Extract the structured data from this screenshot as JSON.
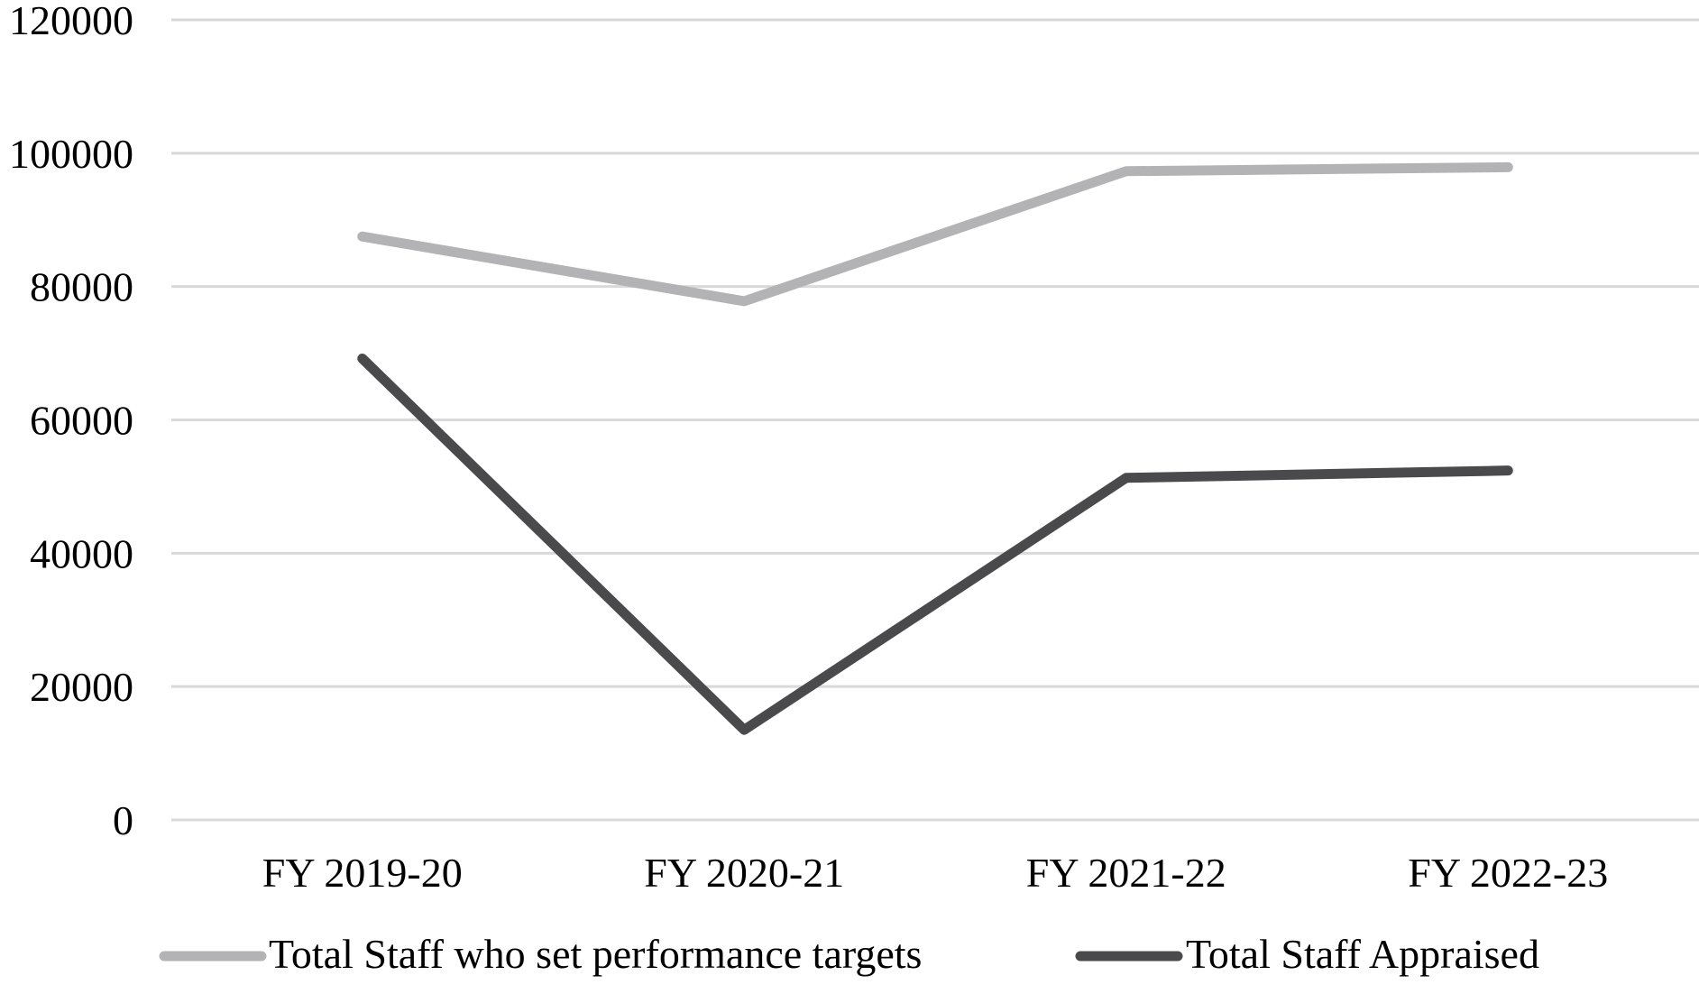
{
  "chart_data": {
    "type": "line",
    "categories": [
      "FY 2019-20",
      "FY 2020-21",
      "FY 2021-22",
      "FY 2022-23"
    ],
    "series": [
      {
        "name": "Total Staff who set performance targets",
        "values": [
          87500,
          77800,
          97300,
          97900
        ],
        "color": "#b3b3b5"
      },
      {
        "name": "Total Staff Appraised",
        "values": [
          69200,
          13500,
          51300,
          52400
        ],
        "color": "#4a4a4c"
      }
    ],
    "ylim": [
      0,
      120000
    ],
    "yticks": [
      "0",
      "20000",
      "40000",
      "60000",
      "80000",
      "100000",
      "120000"
    ],
    "grid": true,
    "gridline_color": "#d9d9d9",
    "legend_position": "bottom"
  }
}
